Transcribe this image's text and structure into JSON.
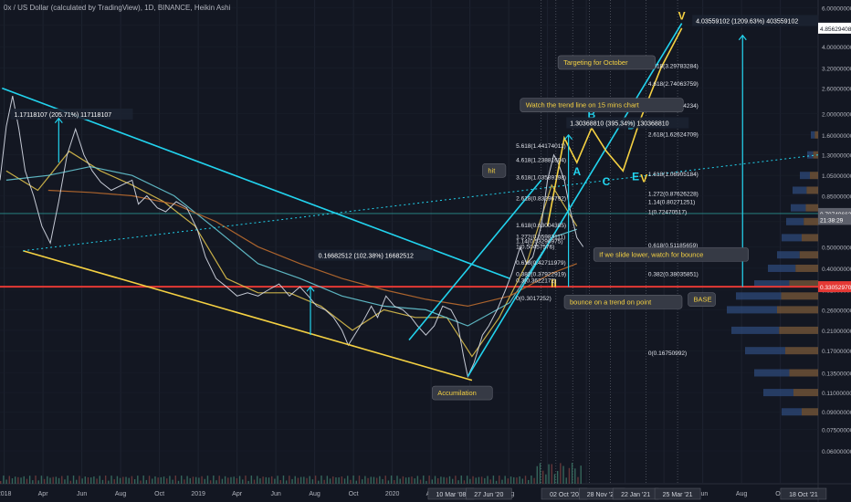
{
  "header": {
    "title": "0x / US Dollar (calculated by TradingView), 1D, BINANCE, Heikin Ashi"
  },
  "chart_data": {
    "type": "line",
    "title": "0x / US Dollar (calculated by TradingView), 1D, BINANCE, Heikin Ashi",
    "scale": "log",
    "ylim": [
      0.06,
      6.5
    ],
    "price_ticks": [
      6.0,
      5.0,
      4.0,
      3.2,
      2.6,
      2.0,
      1.6,
      1.3,
      1.05,
      0.85,
      0.65,
      0.5,
      0.4,
      0.32,
      0.26,
      0.21,
      0.17,
      0.135,
      0.11,
      0.09,
      0.075,
      0.06
    ],
    "price_tick_labels": [
      "6.00000000",
      "5.00000000",
      "4.00000000",
      "3.20000000",
      "2.60000000",
      "2.00000000",
      "1.60000000",
      "1.30000000",
      "1.05000000",
      "0.85000000",
      "0.65000000",
      "0.50000000",
      "0.40000000",
      "0.32000000",
      "0.26000000",
      "0.21000000",
      "0.17000000",
      "0.13500000",
      "0.11000000",
      "0.09000000",
      "0.07500000",
      "0.06000000"
    ],
    "x_ticks": [
      "2018",
      "Apr",
      "Jun",
      "Aug",
      "Oct",
      "2019",
      "Apr",
      "Jun",
      "Aug",
      "Oct",
      "2020",
      "Apr",
      "Jun",
      "Aug",
      "Oct",
      "Dec",
      "Feb",
      "Apr",
      "Jun",
      "Aug",
      "Oct"
    ],
    "x_highlight_labels": [
      "10 Mar '08",
      "27 Jun '20",
      "02 Oct '20",
      "28 Nov '20",
      "22 Jan '21",
      "25 Mar '21",
      "18 Oct '21"
    ],
    "price_badges": [
      {
        "value": "4.85629408",
        "price": 4.85,
        "color": "#ffffff",
        "text_color": "#131722"
      },
      {
        "value": "0.70749663",
        "price": 0.707,
        "color": "#5d606b",
        "text_color": "#ffffff"
      },
      {
        "value": "21:38:29",
        "price": 0.665,
        "color": "#5d606b",
        "text_color": "#ffffff"
      },
      {
        "value": "0.33052970",
        "price": 0.3305,
        "color": "#e53935",
        "text_color": "#ffffff"
      }
    ],
    "price_series": {
      "name": "ZRX/USD",
      "points": [
        [
          2017.97,
          1.0
        ],
        [
          2018.0,
          1.75
        ],
        [
          2018.03,
          2.4
        ],
        [
          2018.06,
          1.7
        ],
        [
          2018.09,
          1.1
        ],
        [
          2018.13,
          0.85
        ],
        [
          2018.17,
          0.62
        ],
        [
          2018.21,
          0.52
        ],
        [
          2018.25,
          0.8
        ],
        [
          2018.29,
          1.3
        ],
        [
          2018.33,
          1.7
        ],
        [
          2018.37,
          1.3
        ],
        [
          2018.41,
          1.1
        ],
        [
          2018.45,
          0.98
        ],
        [
          2018.5,
          0.9
        ],
        [
          2018.55,
          0.95
        ],
        [
          2018.6,
          1.0
        ],
        [
          2018.63,
          0.78
        ],
        [
          2018.67,
          0.85
        ],
        [
          2018.72,
          0.75
        ],
        [
          2018.76,
          0.72
        ],
        [
          2018.81,
          0.8
        ],
        [
          2018.86,
          0.75
        ],
        [
          2018.91,
          0.6
        ],
        [
          2018.95,
          0.45
        ],
        [
          2019.0,
          0.36
        ],
        [
          2019.05,
          0.33
        ],
        [
          2019.1,
          0.3
        ],
        [
          2019.15,
          0.31
        ],
        [
          2019.2,
          0.3
        ],
        [
          2019.25,
          0.32
        ],
        [
          2019.3,
          0.34
        ],
        [
          2019.35,
          0.3
        ],
        [
          2019.4,
          0.33
        ],
        [
          2019.44,
          0.3
        ],
        [
          2019.48,
          0.27
        ],
        [
          2019.52,
          0.26
        ],
        [
          2019.56,
          0.24
        ],
        [
          2019.6,
          0.21
        ],
        [
          2019.63,
          0.18
        ],
        [
          2019.66,
          0.2
        ],
        [
          2019.7,
          0.23
        ],
        [
          2019.74,
          0.27
        ],
        [
          2019.77,
          0.24
        ],
        [
          2019.81,
          0.3
        ],
        [
          2019.85,
          0.27
        ],
        [
          2019.89,
          0.26
        ],
        [
          2019.93,
          0.24
        ],
        [
          2019.96,
          0.22
        ],
        [
          2020.0,
          0.2
        ],
        [
          2020.04,
          0.22
        ],
        [
          2020.08,
          0.27
        ],
        [
          2020.12,
          0.26
        ],
        [
          2020.15,
          0.23
        ],
        [
          2020.18,
          0.16
        ],
        [
          2020.2,
          0.13
        ],
        [
          2020.23,
          0.15
        ],
        [
          2020.27,
          0.2
        ],
        [
          2020.3,
          0.22
        ],
        [
          2020.34,
          0.26
        ],
        [
          2020.38,
          0.32
        ],
        [
          2020.41,
          0.38
        ],
        [
          2020.45,
          0.5
        ],
        [
          2020.48,
          0.42
        ],
        [
          2020.51,
          0.45
        ],
        [
          2020.55,
          0.62
        ],
        [
          2020.58,
          1.0
        ],
        [
          2020.61,
          1.3
        ],
        [
          2020.63,
          1.2
        ],
        [
          2020.66,
          1.0
        ],
        [
          2020.69,
          0.72
        ],
        [
          2020.72,
          0.55
        ],
        [
          2020.75,
          0.5
        ]
      ]
    },
    "series": [
      {
        "name": "Fast MA",
        "color": "#e6c84e",
        "points": [
          [
            2018.0,
            1.1
          ],
          [
            2018.15,
            0.9
          ],
          [
            2018.3,
            1.35
          ],
          [
            2018.45,
            1.1
          ],
          [
            2018.6,
            0.95
          ],
          [
            2018.75,
            0.8
          ],
          [
            2018.9,
            0.62
          ],
          [
            2019.05,
            0.36
          ],
          [
            2019.2,
            0.31
          ],
          [
            2019.35,
            0.31
          ],
          [
            2019.5,
            0.27
          ],
          [
            2019.65,
            0.21
          ],
          [
            2019.8,
            0.26
          ],
          [
            2019.95,
            0.24
          ],
          [
            2020.1,
            0.24
          ],
          [
            2020.22,
            0.16
          ],
          [
            2020.35,
            0.24
          ],
          [
            2020.48,
            0.42
          ],
          [
            2020.6,
            0.95
          ],
          [
            2020.72,
            0.62
          ]
        ]
      },
      {
        "name": "Slow MA",
        "color": "#6ad0dc",
        "points": [
          [
            2018.0,
            1.0
          ],
          [
            2018.2,
            1.05
          ],
          [
            2018.4,
            1.15
          ],
          [
            2018.6,
            1.05
          ],
          [
            2018.8,
            0.85
          ],
          [
            2019.0,
            0.6
          ],
          [
            2019.2,
            0.42
          ],
          [
            2019.4,
            0.36
          ],
          [
            2019.6,
            0.3
          ],
          [
            2019.8,
            0.27
          ],
          [
            2020.0,
            0.26
          ],
          [
            2020.2,
            0.22
          ],
          [
            2020.4,
            0.28
          ],
          [
            2020.6,
            0.55
          ],
          [
            2020.72,
            0.6
          ]
        ]
      },
      {
        "name": "Long MA",
        "color": "#c5712f",
        "points": [
          [
            2018.2,
            0.9
          ],
          [
            2018.4,
            0.88
          ],
          [
            2018.6,
            0.85
          ],
          [
            2018.8,
            0.78
          ],
          [
            2019.0,
            0.65
          ],
          [
            2019.2,
            0.5
          ],
          [
            2019.4,
            0.42
          ],
          [
            2019.6,
            0.36
          ],
          [
            2019.8,
            0.32
          ],
          [
            2020.0,
            0.29
          ],
          [
            2020.2,
            0.27
          ],
          [
            2020.4,
            0.3
          ],
          [
            2020.6,
            0.38
          ],
          [
            2020.72,
            0.42
          ]
        ]
      }
    ],
    "projection": {
      "color": "#f5d142",
      "points": [
        [
          2020.58,
          0.62
        ],
        [
          2020.66,
          1.55
        ],
        [
          2020.72,
          1.2
        ],
        [
          2020.79,
          1.72
        ],
        [
          2020.86,
          1.35
        ],
        [
          2020.94,
          1.1
        ],
        [
          2021.02,
          1.85
        ],
        [
          2021.12,
          3.2
        ],
        [
          2021.22,
          4.85
        ]
      ],
      "labels": [
        {
          "text": "A",
          "x": 2020.72,
          "price": 1.05
        },
        {
          "text": "B",
          "x": 2020.79,
          "price": 1.9
        },
        {
          "text": "C",
          "x": 2020.86,
          "price": 0.95
        },
        {
          "text": "D",
          "x": 2020.98,
          "price": 1.7
        },
        {
          "text": "E",
          "x": 2021.0,
          "price": 1.0
        },
        {
          "text": "V",
          "x": 2021.22,
          "price": 5.3
        },
        {
          "text": "V",
          "x": 2021.04,
          "price": 0.98
        },
        {
          "text": "II",
          "x": 2020.61,
          "price": 0.33
        }
      ]
    },
    "trend_lines": [
      {
        "color": "#22d3ee",
        "from": [
          2017.98,
          2.6
        ],
        "to": [
          2020.4,
          0.36
        ]
      },
      {
        "color": "#f5d142",
        "from": [
          2018.08,
          0.48
        ],
        "to": [
          2020.22,
          0.125
        ]
      },
      {
        "color": "#22d3ee",
        "from": [
          2020.2,
          0.13
        ],
        "to": [
          2021.22,
          5.1
        ]
      },
      {
        "color": "#22d3ee",
        "from": [
          2019.92,
          0.19
        ],
        "to": [
          2020.55,
          1.0
        ]
      }
    ],
    "fib_levels_right": [
      {
        "label": "5.618(3.29783284)",
        "price": 3.3
      },
      {
        "label": "4.618(2.74063759)",
        "price": 2.74
      },
      {
        "label": "3.618(2.18344234)",
        "price": 2.18
      },
      {
        "label": "2.618(1.62624709)",
        "price": 1.62
      },
      {
        "label": "1.618(1.06905184)",
        "price": 1.07
      },
      {
        "label": "1.272(0.87626228)",
        "price": 0.876
      },
      {
        "label": "1.14(0.80271251)",
        "price": 0.803
      },
      {
        "label": "1(0.72470517)",
        "price": 0.725
      },
      {
        "label": "0.618(0.51185659)",
        "price": 0.512
      },
      {
        "label": "0.382(0.38035851)",
        "price": 0.38
      },
      {
        "label": "0(0.16750992)",
        "price": 0.1675
      }
    ],
    "fib_levels_mid": [
      {
        "label": "5.618(1.44174011)",
        "price": 1.44
      },
      {
        "label": "4.618(1.23881604)",
        "price": 1.24
      },
      {
        "label": "3.618(1.03589198)",
        "price": 1.036
      },
      {
        "label": "2.618(0.83296792)",
        "price": 0.833
      },
      {
        "label": "1.618(0.63004385)",
        "price": 0.63
      },
      {
        "label": "1.272(0.55983111)",
        "price": 0.56
      },
      {
        "label": "1.14(0.53296975)",
        "price": 0.533
      },
      {
        "label": "1(0.50457576)",
        "price": 0.505
      },
      {
        "label": "0.618(0.42711979)",
        "price": 0.427
      },
      {
        "label": "0.382(0.37922919)",
        "price": 0.379
      },
      {
        "label": "0.3(0.3622172)",
        "price": 0.355
      },
      {
        "label": "0(0.3017252)",
        "price": 0.295
      }
    ],
    "measurements": [
      {
        "label": "1.17118107 (205.71%) 117118107",
        "x": 2018.02,
        "price": 1.95
      },
      {
        "label": "0.16682512 (102.38%) 16682512",
        "x": 2019.47,
        "price": 0.45
      },
      {
        "label": "1.30368810 (395.34%) 130368810",
        "x": 2020.67,
        "price": 1.78
      },
      {
        "label": "4.03559102 (1209.63%) 403559102",
        "x": 2021.27,
        "price": 5.15
      }
    ],
    "annotations": [
      {
        "text": "Watch the trend line on 15 mins chart",
        "x": 2020.45,
        "price": 2.15
      },
      {
        "text": "Targeting for October",
        "x": 2020.63,
        "price": 3.35
      },
      {
        "text": "hit",
        "x": 2020.27,
        "price": 1.09
      },
      {
        "text": "If we slide lower, watch for bounce",
        "x": 2020.8,
        "price": 0.455
      },
      {
        "text": "bounce on a trend on point",
        "x": 2020.66,
        "price": 0.278
      },
      {
        "text": "Accumilation",
        "x": 2020.03,
        "price": 0.108
      },
      {
        "text": "BASE",
        "x": 2021.25,
        "price": 0.285
      }
    ],
    "horizontal_lines": [
      {
        "price": 0.3305,
        "color": "#e53935"
      },
      {
        "price": 0.707,
        "color": "#2a8f8f"
      }
    ],
    "volume_profile_note": "Volume profile histogram on right side"
  }
}
